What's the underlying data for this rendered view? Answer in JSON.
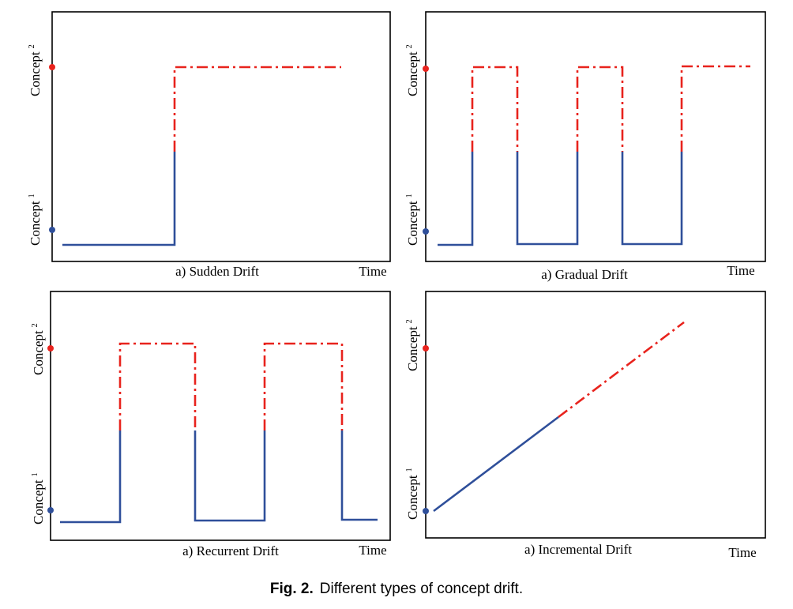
{
  "figure": {
    "caption_label": "Fig. 2.",
    "caption_text": "Different types of concept drift.",
    "colors": {
      "concept1": "#2f4f9a",
      "concept2": "#e8231d",
      "frame": "#000000"
    },
    "panels": [
      {
        "id": "sudden",
        "title": "a) Sudden Drift",
        "time_label": "Time",
        "concept1_label": "Concept",
        "concept1_sup": "1",
        "concept2_label": "Concept",
        "concept2_sup": "2"
      },
      {
        "id": "gradual",
        "title": "a) Gradual Drift",
        "time_label": "Time",
        "concept1_label": "Concept",
        "concept1_sup": "1",
        "concept2_label": "Concept",
        "concept2_sup": "2"
      },
      {
        "id": "recurrent",
        "title": "a) Recurrent Drift",
        "time_label": "Time",
        "concept1_label": "Concept",
        "concept1_sup": "1",
        "concept2_label": "Concept",
        "concept2_sup": "2"
      },
      {
        "id": "incremental",
        "title": "a) Incremental Drift",
        "time_label": "Time",
        "concept1_label": "Concept",
        "concept1_sup": "1",
        "concept2_label": "Concept",
        "concept2_sup": "2"
      }
    ]
  }
}
